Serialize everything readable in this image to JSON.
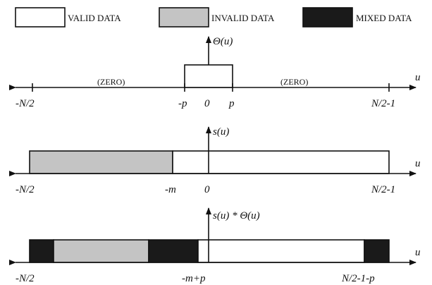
{
  "legend": {
    "valid": "VALID DATA",
    "invalid": "INVALID DATA",
    "mixed": "MIXED DATA"
  },
  "colors": {
    "valid": "#ffffff",
    "invalid": "#c4c4c4",
    "mixed": "#1a1a1a",
    "stroke": "#111111"
  },
  "panel1": {
    "func_label": "Θ(u)",
    "zero_left": "(ZERO)",
    "zero_right": "(ZERO)",
    "ticks": [
      "-N/2",
      "-p",
      "0",
      "p",
      "N/2-1"
    ],
    "axis_var": "u"
  },
  "panel2": {
    "func_label": "s(u)",
    "ticks": [
      "-N/2",
      "-m",
      "0",
      "N/2-1"
    ],
    "axis_var": "u"
  },
  "panel3": {
    "func_label": "s(u) * Θ(u)",
    "ticks": [
      "-N/2",
      "-m+p",
      "N/2-1-p"
    ],
    "axis_var": "u"
  }
}
